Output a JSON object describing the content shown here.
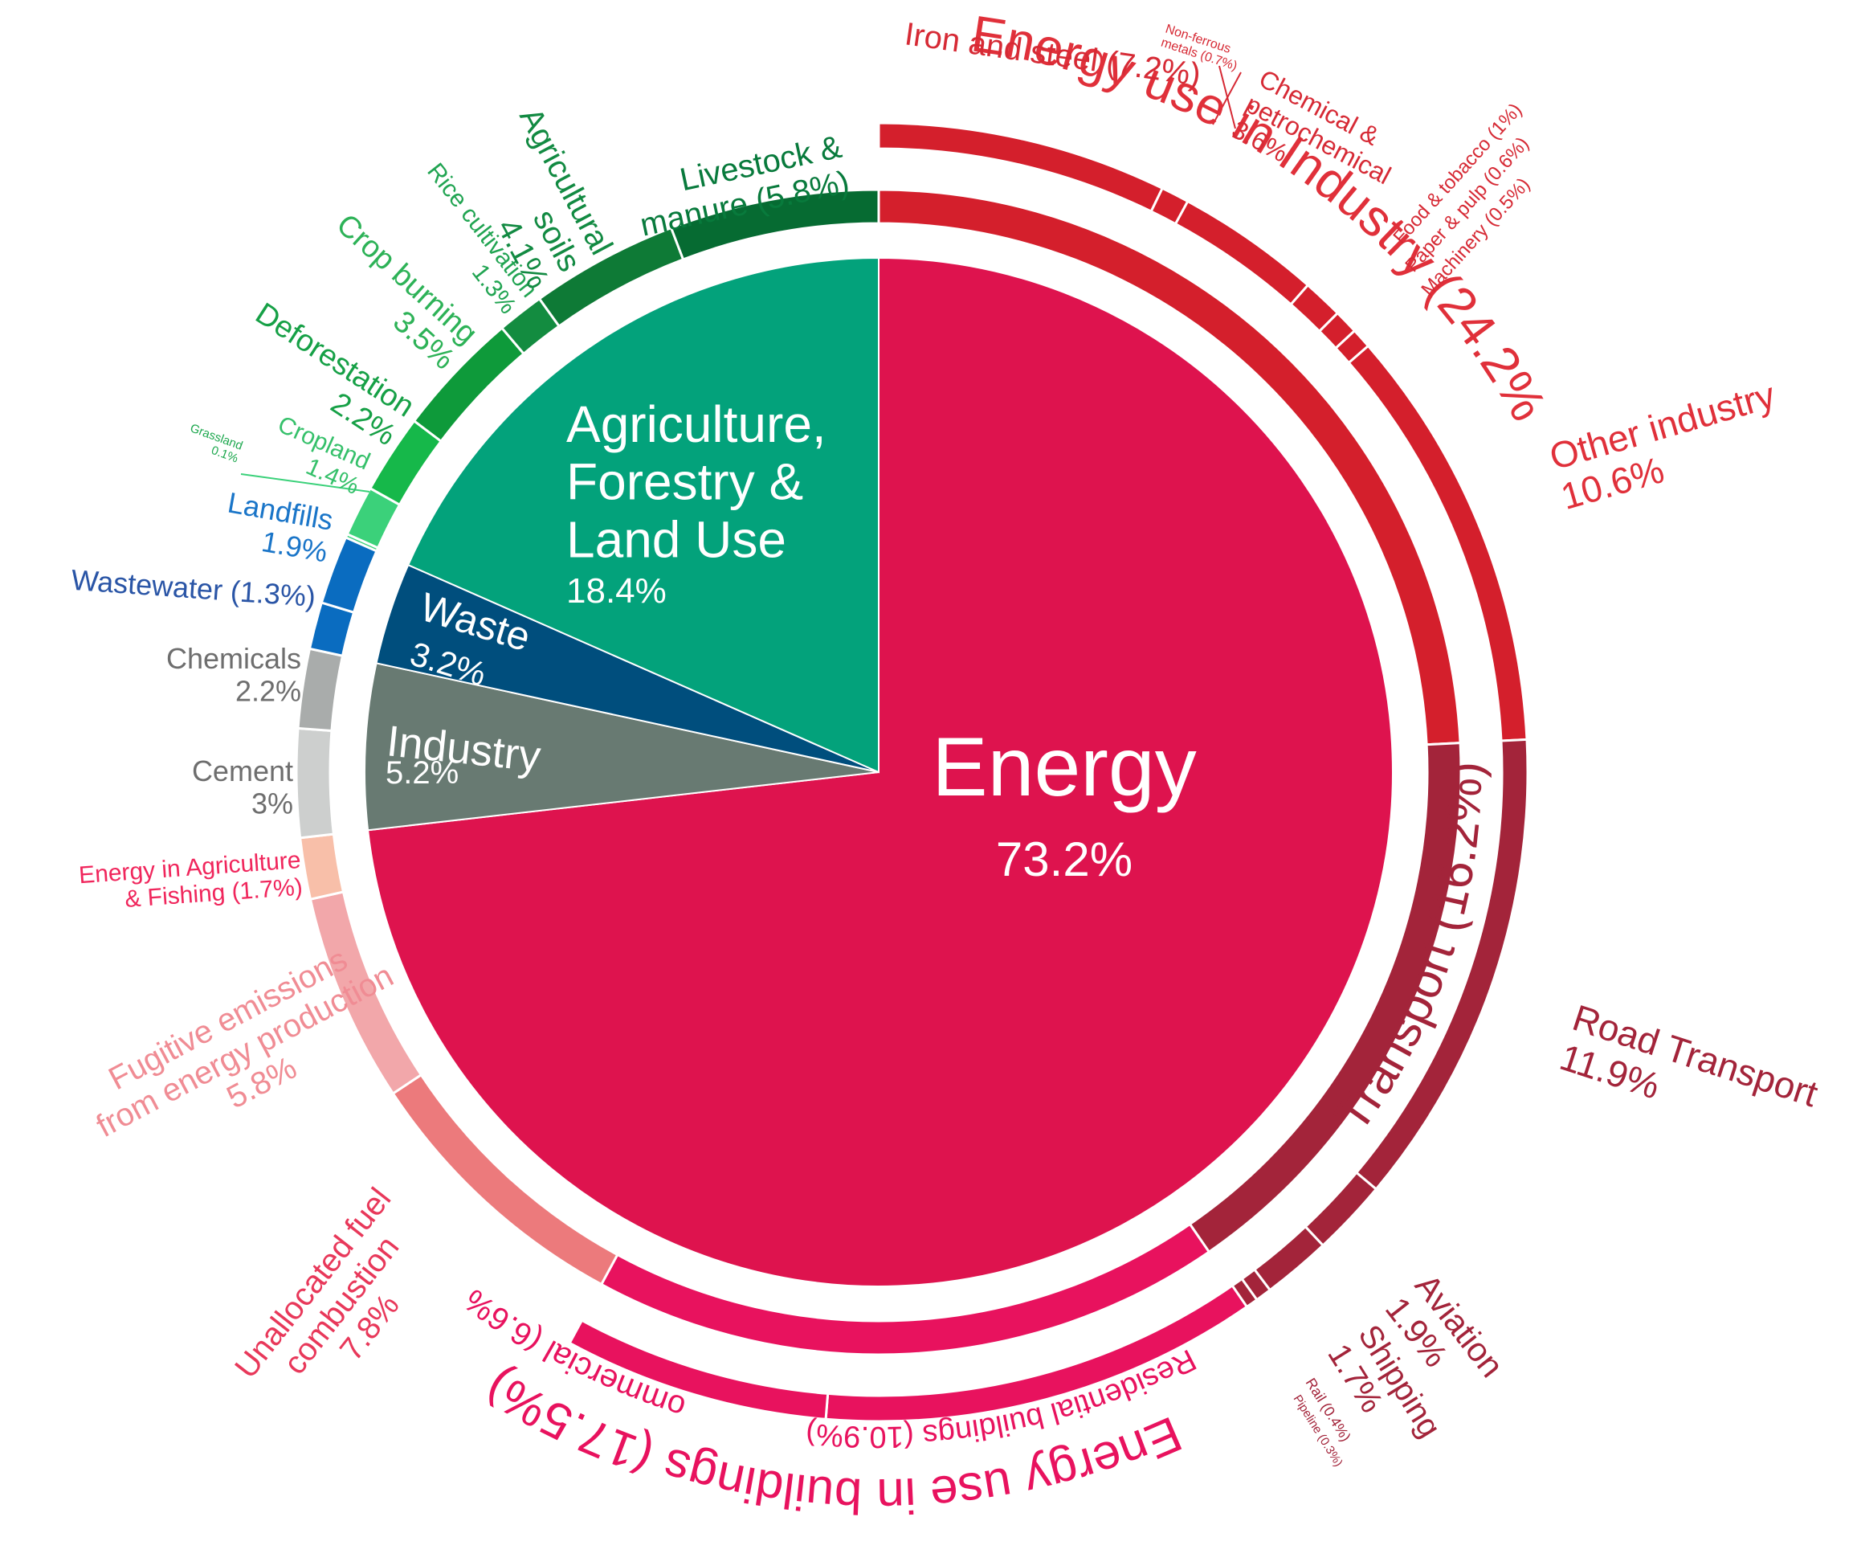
{
  "chart_data": {
    "type": "pie",
    "title": "",
    "sectors": [
      {
        "key": "energy",
        "label": "Energy",
        "value": 73.2,
        "pct_label": "73.2%",
        "color": "#DE134E"
      },
      {
        "key": "industry",
        "label": "Industry",
        "value": 5.2,
        "pct_label": "5.2%",
        "color": "#687A72"
      },
      {
        "key": "waste",
        "label": "Waste",
        "value": 3.2,
        "pct_label": "3.2%",
        "color": "#004E7D"
      },
      {
        "key": "afolu",
        "label": "Agriculture, Forestry & Land Use",
        "label_lines": [
          "Agriculture,",
          "Forestry &",
          "Land Use"
        ],
        "value": 18.4,
        "pct_label": "18.4%",
        "color": "#03A27B"
      }
    ],
    "subsectors": [
      {
        "key": "road_transport",
        "label": "Road Transport",
        "value": 11.9,
        "pct_label": "11.9%",
        "color": "#A3243A",
        "text_color": "#A3243A"
      },
      {
        "key": "aviation",
        "label": "Aviation",
        "value": 1.9,
        "pct_label": "1.9%",
        "color": "#A3243A",
        "text_color": "#A3243A"
      },
      {
        "key": "shipping",
        "label": "Shipping",
        "value": 1.7,
        "pct_label": "1.7%",
        "color": "#A3243A",
        "text_color": "#A3243A"
      },
      {
        "key": "rail",
        "label": "Rail (0.4%)",
        "value": 0.4,
        "color": "#A3243A",
        "text_color": "#A3243A"
      },
      {
        "key": "pipeline",
        "label": "Pipeline (0.3%)",
        "value": 0.3,
        "color": "#A3243A",
        "text_color": "#A3243A"
      },
      {
        "key": "residential",
        "label": "Residential buildings",
        "value": 10.9,
        "pct_label": "(10.9%)",
        "color": "#E8125E",
        "text_color": "#E8125E"
      },
      {
        "key": "commercial",
        "label": "Commercial",
        "value": 6.6,
        "pct_label": "(6.6%)",
        "color": "#E8125E",
        "text_color": "#E8125E"
      },
      {
        "key": "unallocated",
        "label_lines": [
          "Unallocated fuel",
          "combustion"
        ],
        "value": 7.8,
        "pct_label": "7.8%",
        "color": "#EC7A7C",
        "text_color": "#E8385A"
      },
      {
        "key": "fugitive",
        "label_lines": [
          "Fugitive emissions",
          "from energy production"
        ],
        "value": 5.8,
        "pct_label": "5.8%",
        "color": "#F2A7AA",
        "text_color": "#F08C94"
      },
      {
        "key": "agri_energy",
        "label_lines": [
          "Energy in Agriculture",
          "& Fishing (1.7%)"
        ],
        "value": 1.7,
        "color": "#F8BFA9",
        "text_color": "#F0265C"
      },
      {
        "key": "cement",
        "label": "Cement",
        "value": 3.0,
        "pct_label": "3%",
        "color": "#CDCFCE",
        "text_color": "#6E6E6E"
      },
      {
        "key": "chemicals",
        "label": "Chemicals",
        "value": 2.2,
        "pct_label": "2.2%",
        "color": "#A9ACAB",
        "text_color": "#6E6E6E"
      },
      {
        "key": "wastewater",
        "label": "Wastewater (1.3%)",
        "value": 1.3,
        "color": "#0A6CC0",
        "text_color": "#2A55A6"
      },
      {
        "key": "landfills",
        "label": "Landfills",
        "value": 1.9,
        "pct_label": "1.9%",
        "color": "#0A6CC0",
        "text_color": "#1A75C8"
      },
      {
        "key": "grassland",
        "label_lines": [
          "Grassland",
          "0.1%"
        ],
        "value": 0.1,
        "color": "#3BD17A",
        "text_color": "#1EA84F"
      },
      {
        "key": "cropland",
        "label": "Cropland",
        "value": 1.4,
        "pct_label": "1.4%",
        "color": "#3BD17A",
        "text_color": "#35C06A"
      },
      {
        "key": "deforestation",
        "label": "Deforestation",
        "value": 2.2,
        "pct_label": "2.2%",
        "color": "#16B84A",
        "text_color": "#16A046"
      },
      {
        "key": "crop_burning",
        "label": "Crop burning",
        "value": 3.5,
        "pct_label": "3.5%",
        "color": "#0E9A3A",
        "text_color": "#2DB257"
      },
      {
        "key": "rice",
        "label": "Rice cultivation",
        "value": 1.3,
        "pct_label": "1.3%",
        "color": "#138C40",
        "text_color": "#21A452"
      },
      {
        "key": "ag_soils",
        "label_lines": [
          "Agricultural",
          "soils"
        ],
        "value": 4.1,
        "pct_label": "4.1%",
        "color": "#0E7A36",
        "text_color": "#128A42"
      },
      {
        "key": "livestock",
        "label_lines": [
          "Livestock &",
          "manure (5.8%)"
        ],
        "value": 5.8,
        "color": "#066B32",
        "text_color": "#087A3C"
      },
      {
        "key": "iron_steel",
        "label": "Iron and steel (7.2%)",
        "value": 7.2,
        "color": "#D41F2C",
        "text_color": "#D62A35"
      },
      {
        "key": "nonferrous",
        "label_lines": [
          "Non-ferrous",
          "metals (0.7%)"
        ],
        "value": 0.7,
        "color": "#D41F2C",
        "text_color": "#D62A35"
      },
      {
        "key": "chemical_petro",
        "label_lines": [
          "Chemical &",
          "petrochemical",
          "3.6%"
        ],
        "value": 3.6,
        "color": "#D41F2C",
        "text_color": "#D62A35"
      },
      {
        "key": "food_tobacco",
        "label": "Food & tobacco (1%)",
        "value": 1.0,
        "color": "#D41F2C",
        "text_color": "#D62A35"
      },
      {
        "key": "paper_pulp",
        "label": "Paper & pulp (0.6%)",
        "value": 0.6,
        "color": "#D41F2C",
        "text_color": "#D62A35"
      },
      {
        "key": "machinery",
        "label": "Machinery (0.5%)",
        "value": 0.5,
        "color": "#D41F2C",
        "text_color": "#D62A35"
      },
      {
        "key": "other_industry",
        "label": "Other industry",
        "value": 10.6,
        "pct_label": "10.6%",
        "color": "#D41F2C",
        "text_color": "#E0303A"
      }
    ],
    "groups": [
      {
        "key": "industry_energy",
        "label": "Energy use in Industry (24.2%)",
        "value": 24.2,
        "color": "#D41F2C",
        "text_color": "#E0303A"
      },
      {
        "key": "transport",
        "label": "Transport (16.2%)",
        "value": 16.2,
        "color": "#A3243A",
        "text_color": "#A3243A"
      },
      {
        "key": "buildings",
        "label": "Energy use in buildings (17.5%)",
        "value": 17.5,
        "color": "#E8125E",
        "text_color": "#E8125E"
      }
    ]
  }
}
